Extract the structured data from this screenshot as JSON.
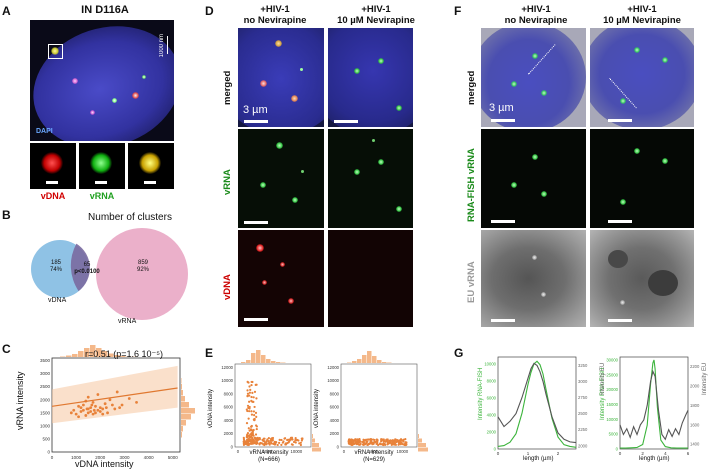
{
  "panels": {
    "A": {
      "letter": "A",
      "title": "IN D116A",
      "scale_label": "1000 nm",
      "stain_label": "DAPI",
      "insets": [
        "vDNA",
        "vRNA",
        "merge"
      ]
    },
    "B": {
      "letter": "B",
      "title": "Number of clusters",
      "vdna_count": "185",
      "vdna_pct": "74%",
      "overlap_count": "65",
      "overlap_p": "p<0.0100",
      "vrna_count": "859",
      "vrna_pct": "92%",
      "vdna_label": "vDNA",
      "vrna_label": "vRNA"
    },
    "C": {
      "letter": "C",
      "annotation": "r=0.51 (p=1.6 10⁻⁵)",
      "xlabel": "vDNA intensity",
      "ylabel": "vRNA intensity"
    },
    "D": {
      "letter": "D",
      "col1_title": "+HIV-1\nno Nevirapine",
      "col2_title": "+HIV-1\n10 µM Nevirapine",
      "row_labels": [
        "merged",
        "vRNA",
        "vDNA"
      ],
      "scale_label": "3 µm"
    },
    "E": {
      "letter": "E",
      "left_xlabel": "vRNA intensity\n(N=666)",
      "right_xlabel": "vRNA intensity\n(N=629)",
      "ylabel": "vDNA intensity"
    },
    "F": {
      "letter": "F",
      "col1_title": "+HIV-1\nno Nevirapine",
      "col2_title": "+HIV-1\n10 µM Nevirapine",
      "row_labels": [
        "merged",
        "RNA-FISH vRNA",
        "EU vRNA"
      ],
      "scale_label": "3 µm"
    },
    "G": {
      "letter": "G",
      "left_ylabel": "Intensity RNA-FISH",
      "left_y2label": "Intensity EU",
      "left_xlabel": "length (µm)",
      "right_ylabel": "Intensity RNA-FISH",
      "right_y2label": "Intensity EU",
      "right_xlabel": "length (µm)"
    }
  },
  "chart_data": [
    {
      "type": "scatter",
      "panel": "C",
      "xlabel": "vDNA intensity",
      "ylabel": "vRNA intensity",
      "xticks": [
        0,
        1000,
        2000,
        3000,
        4000,
        5000
      ],
      "yticks": [
        0,
        500,
        1000,
        1500,
        2000,
        2500,
        3000,
        3500
      ],
      "xlim": [
        0,
        5300
      ],
      "ylim": [
        0,
        3600
      ],
      "points": [
        [
          1500,
          1650
        ],
        [
          1800,
          1500
        ],
        [
          1200,
          1700
        ],
        [
          2100,
          1450
        ],
        [
          900,
          1600
        ],
        [
          2500,
          1800
        ],
        [
          1400,
          1400
        ],
        [
          1700,
          1900
        ],
        [
          3200,
          2050
        ],
        [
          1100,
          1350
        ],
        [
          2000,
          1700
        ],
        [
          2700,
          2300
        ],
        [
          1600,
          1550
        ],
        [
          1300,
          1800
        ],
        [
          1900,
          1600
        ],
        [
          2300,
          1500
        ],
        [
          1000,
          1450
        ],
        [
          2600,
          1650
        ],
        [
          1500,
          2100
        ],
        [
          3500,
          1900
        ],
        [
          1800,
          1750
        ],
        [
          1200,
          1550
        ],
        [
          2200,
          1850
        ],
        [
          1700,
          1450
        ],
        [
          1400,
          1950
        ],
        [
          2900,
          1800
        ],
        [
          1600,
          1700
        ],
        [
          2400,
          2000
        ],
        [
          2000,
          1550
        ],
        [
          800,
          1500
        ],
        [
          1300,
          1600
        ],
        [
          1900,
          2200
        ],
        [
          2800,
          1700
        ],
        [
          1500,
          1500
        ],
        [
          2100,
          1650
        ],
        [
          1100,
          1750
        ],
        [
          1750,
          1600
        ],
        [
          2250,
          1700
        ],
        [
          1650,
          1800
        ],
        [
          1450,
          1650
        ]
      ],
      "fit": [
        [
          0,
          1750
        ],
        [
          5200,
          2450
        ]
      ]
    },
    {
      "type": "scatter",
      "panel": "E-left",
      "ylabel": "vDNA intensity",
      "xlabel": "vRNA intensity",
      "xticks": [
        0,
        5000,
        10000
      ],
      "yticks": [
        0,
        2000,
        4000,
        6000,
        8000,
        10000,
        12000
      ],
      "xlim": [
        -500,
        12500
      ],
      "ylim": [
        0,
        12500
      ]
    },
    {
      "type": "scatter",
      "panel": "E-right",
      "ylabel": "vDNA intensity",
      "xlabel": "vRNA intensity",
      "xticks": [
        0,
        5000,
        10000
      ],
      "yticks": [
        0,
        2000,
        4000,
        6000,
        8000,
        10000,
        12000
      ],
      "xlim": [
        -500,
        12500
      ],
      "ylim": [
        0,
        12500
      ]
    },
    {
      "type": "line",
      "panel": "G-left",
      "xticks": [
        0,
        1,
        2
      ],
      "y1ticks": [
        0,
        2000,
        4000,
        6000,
        8000,
        10000
      ],
      "y2ticks": [
        2000,
        2250,
        2500,
        2750,
        3000,
        3250
      ],
      "xlim": [
        0,
        2.6
      ],
      "y1lim": [
        0,
        10800
      ],
      "y2lim": [
        1950,
        3380
      ],
      "series": [
        {
          "axis": "y1",
          "color": "#3cb43c",
          "x": [
            0,
            0.2,
            0.4,
            0.6,
            0.8,
            1.0,
            1.1,
            1.2,
            1.3,
            1.4,
            1.5,
            1.6,
            1.8,
            2.0,
            2.2,
            2.4,
            2.6
          ],
          "y": [
            300,
            400,
            800,
            1800,
            4200,
            7600,
            9000,
            10000,
            10300,
            9900,
            8800,
            7000,
            3600,
            1400,
            500,
            300,
            200
          ]
        },
        {
          "axis": "y2",
          "color": "#555555",
          "x": [
            0,
            0.2,
            0.4,
            0.6,
            0.8,
            1.0,
            1.1,
            1.2,
            1.3,
            1.4,
            1.5,
            1.6,
            1.8,
            2.0,
            2.2,
            2.4,
            2.6
          ],
          "y": [
            2450,
            2300,
            2380,
            2500,
            2750,
            3050,
            3200,
            3280,
            3250,
            3150,
            3000,
            2800,
            2450,
            2200,
            2100,
            2060,
            2050
          ]
        }
      ]
    },
    {
      "type": "line",
      "panel": "G-right",
      "xticks": [
        0,
        2,
        4,
        6
      ],
      "y1ticks": [
        0,
        5000,
        10000,
        15000,
        20000,
        25000,
        30000
      ],
      "y2ticks": [
        1400,
        1600,
        1800,
        2000,
        2200
      ],
      "xlim": [
        0,
        6
      ],
      "y1lim": [
        0,
        31000
      ],
      "y2lim": [
        1350,
        2300
      ],
      "series": [
        {
          "axis": "y1",
          "color": "#3cb43c",
          "x": [
            0,
            0.5,
            1,
            1.5,
            2,
            2.4,
            2.7,
            2.9,
            3.0,
            3.1,
            3.3,
            3.6,
            4,
            4.5,
            5,
            5.5,
            6
          ],
          "y": [
            300,
            300,
            400,
            500,
            1500,
            8000,
            22000,
            29000,
            30000,
            27000,
            14000,
            3000,
            800,
            400,
            300,
            300,
            300
          ]
        },
        {
          "axis": "y2",
          "color": "#555555",
          "x": [
            0,
            0.3,
            0.6,
            0.9,
            1.2,
            1.5,
            1.8,
            2.1,
            2.4,
            2.7,
            2.9,
            3.1,
            3.4,
            3.7,
            4.0,
            4.3,
            4.6,
            4.9,
            5.2,
            5.5,
            5.8,
            6
          ],
          "y": [
            1600,
            1500,
            1560,
            1470,
            1580,
            1500,
            1600,
            1650,
            1800,
            2050,
            2150,
            2100,
            1750,
            1500,
            1450,
            1550,
            1480,
            1560,
            1500,
            1620,
            1700,
            1750
          ]
        }
      ]
    }
  ]
}
